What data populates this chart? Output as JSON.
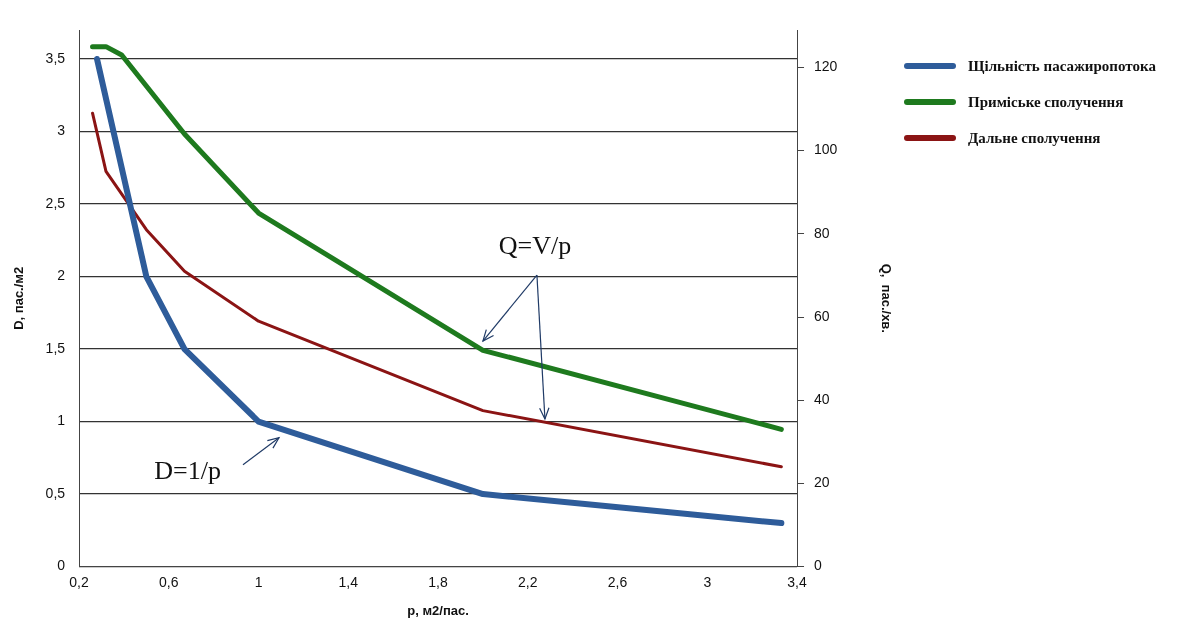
{
  "chart_data": {
    "type": "line",
    "xlabel": "p, м2/пас.",
    "ylabel": "D, пас./м2",
    "y2label": "Q,  пас./хв.",
    "xlim": [
      0.2,
      3.4
    ],
    "xticks": [
      {
        "value": 0.2,
        "label": "0,2"
      },
      {
        "value": 0.6,
        "label": "0,6"
      },
      1,
      {
        "value": 1.4,
        "label": "1,4"
      },
      {
        "value": 1.8,
        "label": "1,8"
      },
      {
        "value": 2.2,
        "label": "2,2"
      },
      {
        "value": 2.6,
        "label": "2,6"
      },
      3,
      {
        "value": 3.4,
        "label": "3,4"
      }
    ],
    "ylim": [
      0,
      3.7
    ],
    "yticks": [
      0,
      {
        "value": 0.5,
        "label": "0,5"
      },
      1,
      {
        "value": 1.5,
        "label": "1,5"
      },
      2,
      {
        "value": 2.5,
        "label": "2,5"
      },
      3,
      {
        "value": 3.5,
        "label": "3,5"
      }
    ],
    "y2lim": [
      0,
      129
    ],
    "y2ticks": [
      0,
      20,
      40,
      60,
      80,
      100,
      120
    ],
    "grid": "y",
    "legend": "top right",
    "marker": "none",
    "line_style": "solid",
    "series": [
      {
        "name": "Щільність пасажиропотока",
        "color": "#2e5c9a",
        "x": [
          0.28,
          0.5,
          0.67,
          1,
          2,
          3.33
        ],
        "values": [
          3.5,
          2,
          1.5,
          1,
          0.5,
          0.3
        ]
      },
      {
        "name": "Приміське сполучення",
        "color": "#1e7a1e",
        "axis": "y2",
        "x": [
          0.26,
          0.32,
          0.39,
          0.67,
          1,
          2,
          3.33
        ],
        "values": [
          125,
          125,
          123,
          104,
          85,
          52,
          33
        ]
      },
      {
        "name": "Дальне сполучення",
        "color": "#8b1414",
        "axis": "y2",
        "x": [
          0.26,
          0.32,
          0.5,
          0.67,
          1,
          2,
          3.33
        ],
        "values": [
          109,
          95,
          81,
          71,
          59,
          37.5,
          24
        ]
      }
    ],
    "annotations": [
      {
        "text": "D=1/p",
        "x": 1.1,
        "y": 0.93
      },
      {
        "text": "Q=V/p",
        "x": 2,
        "y": 1.5
      }
    ]
  }
}
